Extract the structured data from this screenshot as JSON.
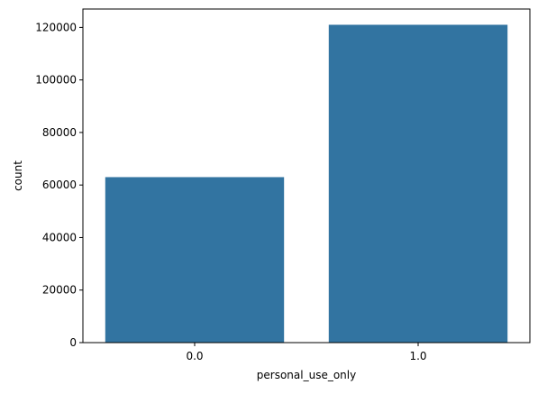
{
  "chart_data": {
    "type": "bar",
    "categories": [
      "0.0",
      "1.0"
    ],
    "values": [
      63000,
      121000
    ],
    "xlabel": "personal_use_only",
    "ylabel": "count",
    "yticks": [
      0,
      20000,
      40000,
      60000,
      80000,
      100000,
      120000
    ],
    "ylim": [
      0,
      127000
    ],
    "grid": false,
    "legend": "none",
    "bar_color": "#3274a1"
  }
}
